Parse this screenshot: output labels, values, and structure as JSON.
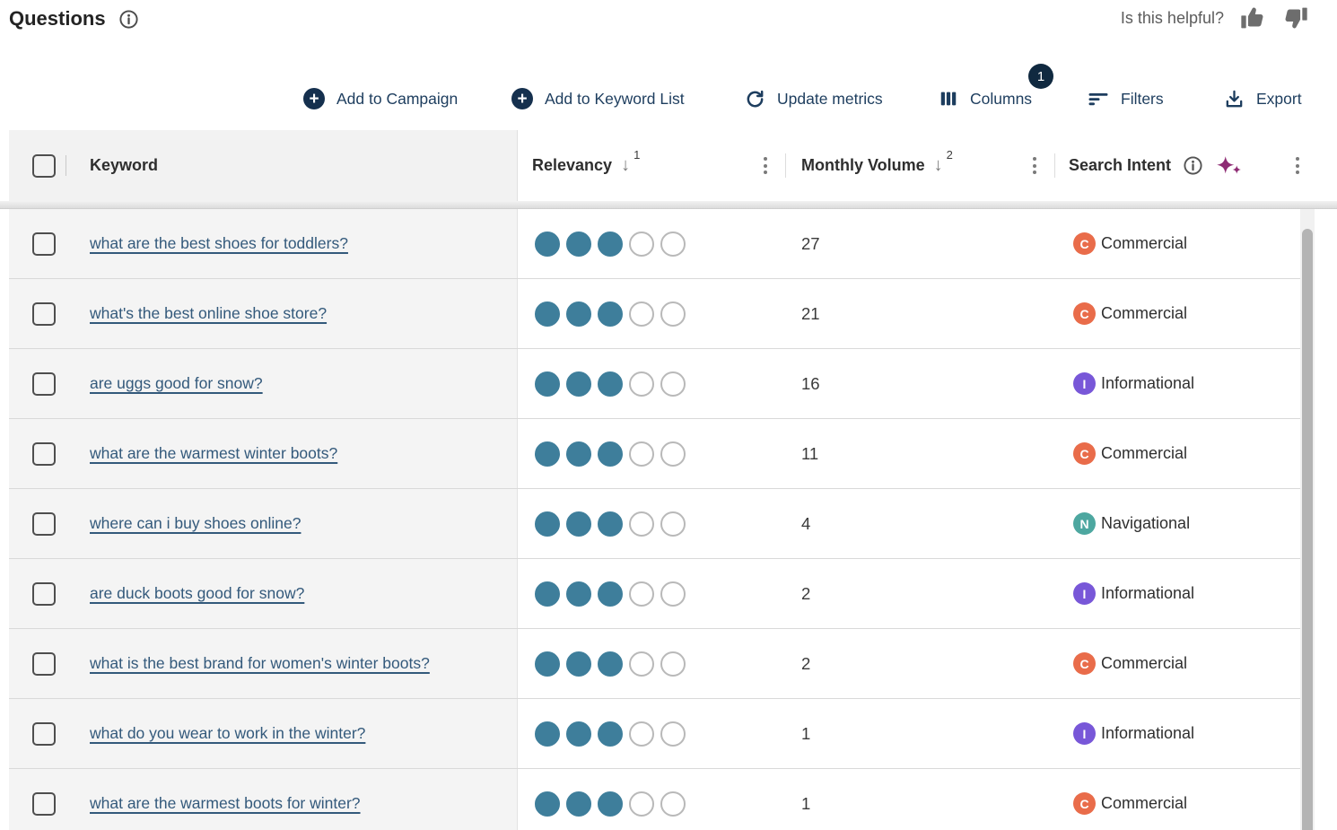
{
  "page": {
    "title": "Questions",
    "helpful_prompt": "Is this helpful?"
  },
  "toolbar": {
    "add_to_campaign": "Add to Campaign",
    "add_to_keyword_list": "Add to Keyword List",
    "update_metrics": "Update metrics",
    "columns": "Columns",
    "columns_badge": "1",
    "filters": "Filters",
    "export": "Export"
  },
  "table": {
    "headers": {
      "keyword": "Keyword",
      "relevancy": "Relevancy",
      "relevancy_sort": "desc",
      "relevancy_sort_order": "1",
      "monthly_volume": "Monthly Volume",
      "monthly_volume_sort": "desc",
      "monthly_volume_sort_order": "2",
      "search_intent": "Search Intent"
    },
    "relevancy_scale_max": 5,
    "rows": [
      {
        "keyword": "what are the best shoes for toddlers?",
        "relevancy": 3,
        "monthly_volume": "27",
        "intent": "Commercial",
        "intent_code": "C"
      },
      {
        "keyword": "what's the best online shoe store?",
        "relevancy": 3,
        "monthly_volume": "21",
        "intent": "Commercial",
        "intent_code": "C"
      },
      {
        "keyword": "are uggs good for snow?",
        "relevancy": 3,
        "monthly_volume": "16",
        "intent": "Informational",
        "intent_code": "I"
      },
      {
        "keyword": "what are the warmest winter boots?",
        "relevancy": 3,
        "monthly_volume": "11",
        "intent": "Commercial",
        "intent_code": "C"
      },
      {
        "keyword": "where can i buy shoes online?",
        "relevancy": 3,
        "monthly_volume": "4",
        "intent": "Navigational",
        "intent_code": "N"
      },
      {
        "keyword": "are duck boots good for snow?",
        "relevancy": 3,
        "monthly_volume": "2",
        "intent": "Informational",
        "intent_code": "I"
      },
      {
        "keyword": "what is the best brand for women's winter boots?",
        "relevancy": 3,
        "monthly_volume": "2",
        "intent": "Commercial",
        "intent_code": "C"
      },
      {
        "keyword": "what do you wear to work in the winter?",
        "relevancy": 3,
        "monthly_volume": "1",
        "intent": "Informational",
        "intent_code": "I"
      },
      {
        "keyword": "what are the warmest boots for winter?",
        "relevancy": 3,
        "monthly_volume": "1",
        "intent": "Commercial",
        "intent_code": "C"
      }
    ]
  },
  "icons": [
    "info-icon",
    "thumbs-up-icon",
    "thumbs-down-icon",
    "plus-circle-icon",
    "refresh-icon",
    "columns-icon",
    "filter-icon",
    "export-icon",
    "sort-desc-icon",
    "kebab-menu-icon",
    "sparkles-ai-icon"
  ],
  "colors": {
    "accent_navy": "#1d3d5e",
    "badge_navy": "#102940",
    "link_blue": "#33597b",
    "relevancy_dot_filled": "#3e7e9b",
    "intent_commercial": "#e96c4a",
    "intent_informational": "#7857d8",
    "intent_navigational": "#4da7a0",
    "sparkle_magenta": "#8e2c74",
    "pinned_column_bg": "#f4f4f4"
  }
}
